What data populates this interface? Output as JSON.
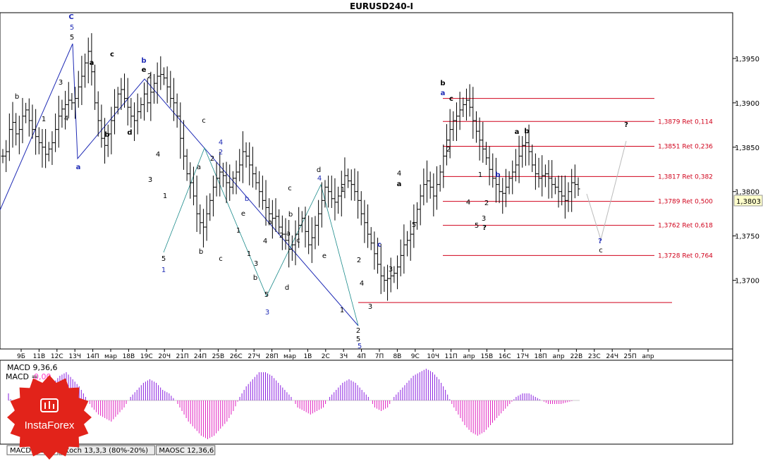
{
  "title": "EURUSD240-I",
  "current_price_label": "1,3803",
  "colors": {
    "blue": "#1f2bb5",
    "red": "#d0021b",
    "grey": "#bbbbbb",
    "macd_pos": "#8a1ee0",
    "macd_neg": "#e020c0",
    "logo_red": "#e2231a"
  },
  "chart_data": {
    "type": "candlestick",
    "y_ticks": [
      "1,3950",
      "1,3900",
      "1,3850",
      "1,3800",
      "1,3750",
      "1,3700"
    ],
    "y_tick_values": [
      1.395,
      1.39,
      1.385,
      1.38,
      1.375,
      1.37
    ],
    "ylim": [
      1.3625,
      1.4
    ],
    "x_ticks": [
      "9Б",
      "11В",
      "12С",
      "13Ч",
      "14П",
      "мар",
      "18В",
      "19С",
      "20Ч",
      "21П",
      "24П",
      "25В",
      "26С",
      "27Ч",
      "28П",
      "мар",
      "1В",
      "2С",
      "3Ч",
      "4П",
      "7П",
      "8В",
      "9С",
      "10Ч",
      "11П",
      "апр",
      "15В",
      "16С",
      "17Ч",
      "18П",
      "апр",
      "22В",
      "23С",
      "24Ч",
      "25П",
      "апр"
    ],
    "retracements": [
      {
        "label": "1,3879 Ret 0,114",
        "value": 1.3879
      },
      {
        "label": "1,3851 Ret 0,236",
        "value": 1.3851
      },
      {
        "label": "1,3817 Ret 0,382",
        "value": 1.3817
      },
      {
        "label": "1,3789 Ret 0,500",
        "value": 1.3789
      },
      {
        "label": "1,3762 Ret 0,618",
        "value": 1.3762
      },
      {
        "label": "1,3728 Ret 0,764",
        "value": 1.3728
      }
    ],
    "high_line": 1.3905,
    "low_line": 1.3675,
    "closes": [
      1.384,
      1.3845,
      1.387,
      1.3878,
      1.3865,
      1.387,
      1.3885,
      1.3892,
      1.388,
      1.387,
      1.3862,
      1.3855,
      1.385,
      1.3842,
      1.3848,
      1.3855,
      1.387,
      1.3885,
      1.3893,
      1.3898,
      1.3903,
      1.39,
      1.3905,
      1.3918,
      1.393,
      1.3945,
      1.3958,
      1.3935,
      1.39,
      1.388,
      1.386,
      1.3852,
      1.3865,
      1.388,
      1.3895,
      1.391,
      1.3915,
      1.3905,
      1.3895,
      1.3885,
      1.388,
      1.389,
      1.3898,
      1.391,
      1.39,
      1.3912,
      1.3922,
      1.393,
      1.3932,
      1.3928,
      1.3918,
      1.3905,
      1.39,
      1.3885,
      1.386,
      1.384,
      1.382,
      1.381,
      1.3795,
      1.3775,
      1.3765,
      1.376,
      1.3775,
      1.379,
      1.3805,
      1.3815,
      1.3822,
      1.3818,
      1.381,
      1.3805,
      1.3815,
      1.3822,
      1.383,
      1.3845,
      1.384,
      1.383,
      1.382,
      1.381,
      1.38,
      1.379,
      1.3782,
      1.3775,
      1.377,
      1.3772,
      1.376,
      1.3752,
      1.3745,
      1.3735,
      1.374,
      1.3752,
      1.3762,
      1.377,
      1.3755,
      1.374,
      1.3748,
      1.3762,
      1.3775,
      1.379,
      1.3805,
      1.38,
      1.3792,
      1.3788,
      1.3795,
      1.3808,
      1.3818,
      1.3812,
      1.3808,
      1.38,
      1.379,
      1.3775,
      1.3765,
      1.3752,
      1.3742,
      1.373,
      1.3718,
      1.3705,
      1.37,
      1.3702,
      1.3705,
      1.3708,
      1.3715,
      1.3728,
      1.374,
      1.3745,
      1.3752,
      1.3765,
      1.378,
      1.3795,
      1.3808,
      1.3812,
      1.3805,
      1.3795,
      1.3808,
      1.3822,
      1.384,
      1.3858,
      1.387,
      1.388,
      1.3885,
      1.3892,
      1.3898,
      1.3903,
      1.3895,
      1.388,
      1.3868,
      1.3858,
      1.3848,
      1.3838,
      1.3825,
      1.3815,
      1.3808,
      1.38,
      1.3798,
      1.3805,
      1.3815,
      1.3822,
      1.383,
      1.384,
      1.3852,
      1.3855,
      1.3845,
      1.383,
      1.382,
      1.3815,
      1.3818,
      1.382,
      1.3815,
      1.3808,
      1.3805,
      1.38,
      1.3795,
      1.379,
      1.38,
      1.381,
      1.3808,
      1.3803
    ]
  },
  "wave_labels": [
    {
      "t": "C",
      "c": "blue",
      "b": true
    },
    {
      "t": "5",
      "c": "blue"
    },
    {
      "t": "5",
      "c": "black"
    },
    {
      "t": "c",
      "c": "black",
      "b": true
    },
    {
      "t": "b",
      "c": "blue",
      "b": true
    },
    {
      "t": "e",
      "c": "black",
      "b": true
    },
    {
      "t": "2",
      "c": "black"
    },
    {
      "t": "a",
      "c": "black",
      "b": true
    },
    {
      "t": "b",
      "c": "black"
    },
    {
      "t": "3",
      "c": "black"
    },
    {
      "t": "4",
      "c": "black"
    },
    {
      "t": "1",
      "c": "black"
    },
    {
      "t": "d",
      "c": "black",
      "b": true
    },
    {
      "t": "b",
      "c": "black",
      "b": true
    },
    {
      "t": "a",
      "c": "blue",
      "b": true
    },
    {
      "t": "c",
      "c": "black"
    },
    {
      "t": "4",
      "c": "blue"
    },
    {
      "t": "2",
      "c": "black"
    },
    {
      "t": "a",
      "c": "black"
    },
    {
      "t": "b",
      "c": "blue"
    },
    {
      "t": "1",
      "c": "black"
    },
    {
      "t": "1",
      "c": "black"
    },
    {
      "t": "4",
      "c": "black"
    },
    {
      "t": "3",
      "c": "black"
    },
    {
      "t": "5",
      "c": "black"
    },
    {
      "t": "1",
      "c": "blue"
    },
    {
      "t": "b",
      "c": "black"
    },
    {
      "t": "c",
      "c": "black"
    },
    {
      "t": "2",
      "c": "blue"
    },
    {
      "t": "e",
      "c": "black"
    },
    {
      "t": "a",
      "c": "black"
    },
    {
      "t": "d",
      "c": "black"
    },
    {
      "t": "b",
      "c": "black"
    },
    {
      "t": "1",
      "c": "black"
    },
    {
      "t": "c",
      "c": "black"
    },
    {
      "t": "2",
      "c": "black"
    },
    {
      "t": "a",
      "c": "black"
    },
    {
      "t": "4",
      "c": "black"
    },
    {
      "t": "3",
      "c": "black"
    },
    {
      "t": "5",
      "c": "black"
    },
    {
      "t": "3",
      "c": "blue"
    },
    {
      "t": "b",
      "c": "black"
    },
    {
      "t": "c",
      "c": "black"
    },
    {
      "t": "d",
      "c": "black"
    },
    {
      "t": "4",
      "c": "blue"
    },
    {
      "t": "e",
      "c": "black"
    },
    {
      "t": "1",
      "c": "black"
    },
    {
      "t": "2",
      "c": "black"
    },
    {
      "t": "4",
      "c": "black"
    },
    {
      "t": "1",
      "c": "black"
    },
    {
      "t": "3",
      "c": "black"
    },
    {
      "t": "2",
      "c": "black"
    },
    {
      "t": "5",
      "c": "black"
    },
    {
      "t": "5",
      "c": "blue"
    },
    {
      "t": "c",
      "c": "blue",
      "b": true
    },
    {
      "t": "3",
      "c": "black"
    },
    {
      "t": "4",
      "c": "black"
    },
    {
      "t": "a",
      "c": "black",
      "b": true
    },
    {
      "t": "5",
      "c": "black"
    },
    {
      "t": "b",
      "c": "black",
      "b": true
    },
    {
      "t": "a",
      "c": "blue",
      "b": true
    },
    {
      "t": "c",
      "c": "black",
      "b": true
    },
    {
      "t": "2",
      "c": "black"
    },
    {
      "t": "1",
      "c": "black"
    },
    {
      "t": "4",
      "c": "black"
    },
    {
      "t": "3",
      "c": "black"
    },
    {
      "t": "5",
      "c": "black"
    },
    {
      "t": "?",
      "c": "black",
      "b": true
    },
    {
      "t": "a",
      "c": "black",
      "b": true
    },
    {
      "t": "b",
      "c": "black",
      "b": true
    },
    {
      "t": "?",
      "c": "black",
      "b": true
    },
    {
      "t": "?",
      "c": "blue",
      "b": true
    },
    {
      "t": "c",
      "c": "black"
    },
    {
      "t": "b",
      "c": "blue",
      "b": true
    },
    {
      "t": "2",
      "c": "black"
    },
    {
      "t": "1",
      "c": "black"
    }
  ],
  "macd": {
    "label1": "MACD 9,36,6",
    "label2_prefix": "MACD =",
    "label2_value": "0,00",
    "values": [
      0.2,
      -0.3,
      -0.5,
      -0.4,
      -0.2,
      0.1,
      0.3,
      0.5,
      0.7,
      0.8,
      0.6,
      0.4,
      0.1,
      -0.2,
      -0.4,
      -0.5,
      -0.6,
      -0.4,
      -0.2,
      0.1,
      0.3,
      0.5,
      0.6,
      0.5,
      0.3,
      0.2,
      0.0,
      -0.3,
      -0.6,
      -0.8,
      -1.0,
      -1.1,
      -1.0,
      -0.8,
      -0.6,
      -0.3,
      0.1,
      0.4,
      0.6,
      0.8,
      0.8,
      0.7,
      0.5,
      0.3,
      0.1,
      -0.2,
      -0.3,
      -0.4,
      -0.3,
      -0.2,
      0.1,
      0.3,
      0.5,
      0.6,
      0.5,
      0.3,
      0.1,
      -0.2,
      -0.3,
      -0.2,
      0.1,
      0.3,
      0.5,
      0.7,
      0.8,
      0.9,
      0.8,
      0.6,
      0.3,
      -0.1,
      -0.4,
      -0.7,
      -0.9,
      -1.0,
      -0.9,
      -0.7,
      -0.5,
      -0.3,
      -0.1,
      0.1,
      0.2,
      0.2,
      0.1,
      0.0,
      -0.1,
      -0.1,
      -0.1,
      -0.05,
      0.0
    ]
  },
  "tabs": [
    {
      "label": "MACD 9,36,6",
      "active": true
    },
    {
      "label": "Stoch 13,3,3 (80%-20%)",
      "active": false
    },
    {
      "label": "MAOSC 12,36,6",
      "active": false
    }
  ],
  "logo": {
    "brand": "InstaForex"
  }
}
